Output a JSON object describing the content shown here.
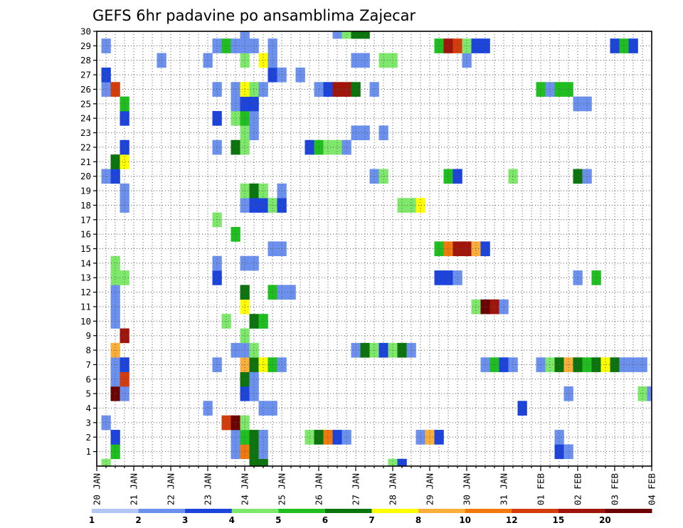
{
  "chart_data": {
    "type": "heatmap",
    "title": "GEFS 6hr padavine po ansamblima Zajecar",
    "x_tick_labels": [
      "20 JAN",
      "21 JAN",
      "22 JAN",
      "23 JAN",
      "24 JAN",
      "25 JAN",
      "26 JAN",
      "27 JAN",
      "28 JAN",
      "29 JAN",
      "30 JAN",
      "31 JAN",
      "01 FEB",
      "02 FEB",
      "03 FEB",
      "04 FEB"
    ],
    "y_tick_labels": [
      "1",
      "2",
      "3",
      "4",
      "5",
      "6",
      "7",
      "8",
      "9",
      "10",
      "11",
      "12",
      "13",
      "14",
      "15",
      "16",
      "17",
      "18",
      "19",
      "20",
      "21",
      "22",
      "23",
      "24",
      "25",
      "26",
      "27",
      "28",
      "29",
      "30"
    ],
    "xlim": [
      0,
      60
    ],
    "ylim": [
      0,
      30
    ],
    "grid": true,
    "colorbar": {
      "labels": [
        "1",
        "2",
        "3",
        "4",
        "5",
        "6",
        "7",
        "8",
        "10",
        "12",
        "15",
        "20"
      ],
      "colors": [
        "#b3c7f5",
        "#6b90ee",
        "#1c44dc",
        "#7ee86a",
        "#1fbf1f",
        "#0c740c",
        "#ffff00",
        "#fcae3a",
        "#f27a0c",
        "#d43c0c",
        "#a0140a",
        "#6a0000"
      ]
    },
    "cells": [
      [
        1,
        0,
        3
      ],
      [
        17,
        0,
        5
      ],
      [
        18,
        0,
        5
      ],
      [
        32,
        0,
        3
      ],
      [
        33,
        0,
        2
      ],
      [
        2,
        1,
        4
      ],
      [
        15,
        1,
        1
      ],
      [
        16,
        1,
        8
      ],
      [
        17,
        1,
        5
      ],
      [
        18,
        1,
        1
      ],
      [
        50,
        1,
        2
      ],
      [
        51,
        1,
        1
      ],
      [
        2,
        2,
        2
      ],
      [
        15,
        2,
        1
      ],
      [
        16,
        2,
        4
      ],
      [
        17,
        2,
        5
      ],
      [
        18,
        2,
        1
      ],
      [
        23,
        2,
        3
      ],
      [
        24,
        2,
        5
      ],
      [
        25,
        2,
        8
      ],
      [
        26,
        2,
        2
      ],
      [
        27,
        2,
        1
      ],
      [
        35,
        2,
        1
      ],
      [
        36,
        2,
        7
      ],
      [
        37,
        2,
        2
      ],
      [
        50,
        2,
        1
      ],
      [
        1,
        3,
        1
      ],
      [
        14,
        3,
        9
      ],
      [
        15,
        3,
        11
      ],
      [
        16,
        3,
        3
      ],
      [
        12,
        4,
        1
      ],
      [
        18,
        4,
        1
      ],
      [
        19,
        4,
        1
      ],
      [
        46,
        4,
        2
      ],
      [
        2,
        5,
        11
      ],
      [
        3,
        5,
        1
      ],
      [
        16,
        5,
        2
      ],
      [
        17,
        5,
        1
      ],
      [
        51,
        5,
        1
      ],
      [
        59,
        5,
        3
      ],
      [
        60,
        5,
        1
      ],
      [
        2,
        6,
        1
      ],
      [
        3,
        6,
        9
      ],
      [
        16,
        6,
        5
      ],
      [
        17,
        6,
        1
      ],
      [
        2,
        7,
        1
      ],
      [
        3,
        7,
        2
      ],
      [
        13,
        7,
        1
      ],
      [
        16,
        7,
        7
      ],
      [
        17,
        7,
        5
      ],
      [
        18,
        7,
        6
      ],
      [
        19,
        7,
        4
      ],
      [
        20,
        7,
        1
      ],
      [
        42,
        7,
        1
      ],
      [
        43,
        7,
        4
      ],
      [
        44,
        7,
        2
      ],
      [
        45,
        7,
        1
      ],
      [
        48,
        7,
        1
      ],
      [
        49,
        7,
        3
      ],
      [
        50,
        7,
        5
      ],
      [
        51,
        7,
        7
      ],
      [
        52,
        7,
        5
      ],
      [
        53,
        7,
        4
      ],
      [
        54,
        7,
        5
      ],
      [
        55,
        7,
        6
      ],
      [
        56,
        7,
        5
      ],
      [
        57,
        7,
        1
      ],
      [
        58,
        7,
        1
      ],
      [
        59,
        7,
        1
      ],
      [
        2,
        8,
        7
      ],
      [
        15,
        8,
        1
      ],
      [
        16,
        8,
        1
      ],
      [
        17,
        8,
        3
      ],
      [
        28,
        8,
        1
      ],
      [
        29,
        8,
        5
      ],
      [
        30,
        8,
        3
      ],
      [
        31,
        8,
        2
      ],
      [
        32,
        8,
        3
      ],
      [
        33,
        8,
        5
      ],
      [
        34,
        8,
        1
      ],
      [
        3,
        9,
        10
      ],
      [
        16,
        9,
        3
      ],
      [
        2,
        10,
        1
      ],
      [
        14,
        10,
        3
      ],
      [
        17,
        10,
        5
      ],
      [
        18,
        10,
        4
      ],
      [
        2,
        11,
        1
      ],
      [
        16,
        11,
        6
      ],
      [
        41,
        11,
        3
      ],
      [
        42,
        11,
        11
      ],
      [
        43,
        11,
        10
      ],
      [
        44,
        11,
        1
      ],
      [
        2,
        12,
        1
      ],
      [
        16,
        12,
        5
      ],
      [
        19,
        12,
        4
      ],
      [
        20,
        12,
        1
      ],
      [
        21,
        12,
        1
      ],
      [
        2,
        13,
        3
      ],
      [
        3,
        13,
        3
      ],
      [
        13,
        13,
        2
      ],
      [
        37,
        13,
        2
      ],
      [
        38,
        13,
        2
      ],
      [
        39,
        13,
        1
      ],
      [
        52,
        13,
        1
      ],
      [
        54,
        13,
        4
      ],
      [
        2,
        14,
        3
      ],
      [
        13,
        14,
        1
      ],
      [
        16,
        14,
        1
      ],
      [
        17,
        14,
        1
      ],
      [
        19,
        15,
        1
      ],
      [
        20,
        15,
        1
      ],
      [
        37,
        15,
        4
      ],
      [
        38,
        15,
        8
      ],
      [
        39,
        15,
        10
      ],
      [
        40,
        15,
        10
      ],
      [
        41,
        15,
        7
      ],
      [
        42,
        15,
        2
      ],
      [
        15,
        16,
        4
      ],
      [
        13,
        17,
        3
      ],
      [
        3,
        18,
        1
      ],
      [
        16,
        18,
        1
      ],
      [
        17,
        18,
        2
      ],
      [
        18,
        18,
        2
      ],
      [
        19,
        18,
        3
      ],
      [
        20,
        18,
        2
      ],
      [
        33,
        18,
        3
      ],
      [
        34,
        18,
        3
      ],
      [
        35,
        18,
        6
      ],
      [
        3,
        19,
        1
      ],
      [
        16,
        19,
        3
      ],
      [
        17,
        19,
        5
      ],
      [
        18,
        19,
        3
      ],
      [
        20,
        19,
        1
      ],
      [
        1,
        20,
        1
      ],
      [
        2,
        20,
        2
      ],
      [
        30,
        20,
        1
      ],
      [
        31,
        20,
        3
      ],
      [
        38,
        20,
        4
      ],
      [
        39,
        20,
        2
      ],
      [
        45,
        20,
        3
      ],
      [
        52,
        20,
        5
      ],
      [
        53,
        20,
        1
      ],
      [
        2,
        21,
        5
      ],
      [
        3,
        21,
        6
      ],
      [
        3,
        22,
        2
      ],
      [
        13,
        22,
        1
      ],
      [
        15,
        22,
        5
      ],
      [
        16,
        22,
        3
      ],
      [
        23,
        22,
        2
      ],
      [
        24,
        22,
        4
      ],
      [
        25,
        22,
        3
      ],
      [
        26,
        22,
        3
      ],
      [
        27,
        22,
        1
      ],
      [
        16,
        23,
        3
      ],
      [
        17,
        23,
        1
      ],
      [
        28,
        23,
        1
      ],
      [
        29,
        23,
        1
      ],
      [
        31,
        23,
        1
      ],
      [
        3,
        24,
        2
      ],
      [
        13,
        24,
        2
      ],
      [
        15,
        24,
        3
      ],
      [
        16,
        24,
        4
      ],
      [
        17,
        24,
        1
      ],
      [
        3,
        25,
        4
      ],
      [
        15,
        25,
        1
      ],
      [
        16,
        25,
        2
      ],
      [
        17,
        25,
        2
      ],
      [
        52,
        25,
        1
      ],
      [
        53,
        25,
        1
      ],
      [
        1,
        26,
        1
      ],
      [
        2,
        26,
        9
      ],
      [
        13,
        26,
        1
      ],
      [
        15,
        26,
        1
      ],
      [
        16,
        26,
        6
      ],
      [
        17,
        26,
        3
      ],
      [
        18,
        26,
        1
      ],
      [
        24,
        26,
        1
      ],
      [
        25,
        26,
        2
      ],
      [
        26,
        26,
        10
      ],
      [
        27,
        26,
        10
      ],
      [
        28,
        26,
        5
      ],
      [
        30,
        26,
        1
      ],
      [
        48,
        26,
        4
      ],
      [
        49,
        26,
        1
      ],
      [
        50,
        26,
        4
      ],
      [
        51,
        26,
        4
      ],
      [
        1,
        27,
        2
      ],
      [
        19,
        27,
        2
      ],
      [
        20,
        27,
        1
      ],
      [
        22,
        27,
        1
      ],
      [
        7,
        28,
        1
      ],
      [
        12,
        28,
        1
      ],
      [
        16,
        28,
        3
      ],
      [
        18,
        28,
        6
      ],
      [
        19,
        28,
        1
      ],
      [
        28,
        28,
        1
      ],
      [
        29,
        28,
        1
      ],
      [
        31,
        28,
        3
      ],
      [
        32,
        28,
        3
      ],
      [
        40,
        28,
        1
      ],
      [
        1,
        29,
        1
      ],
      [
        13,
        29,
        1
      ],
      [
        14,
        29,
        4
      ],
      [
        15,
        29,
        1
      ],
      [
        16,
        29,
        1
      ],
      [
        17,
        29,
        1
      ],
      [
        19,
        29,
        1
      ],
      [
        37,
        29,
        4
      ],
      [
        38,
        29,
        10
      ],
      [
        39,
        29,
        9
      ],
      [
        40,
        29,
        3
      ],
      [
        41,
        29,
        2
      ],
      [
        42,
        29,
        2
      ],
      [
        56,
        29,
        2
      ],
      [
        57,
        29,
        4
      ],
      [
        58,
        29,
        2
      ],
      [
        16,
        30,
        1
      ],
      [
        26,
        30,
        1
      ],
      [
        27,
        30,
        3
      ],
      [
        28,
        30,
        5
      ],
      [
        29,
        30,
        5
      ]
    ]
  }
}
